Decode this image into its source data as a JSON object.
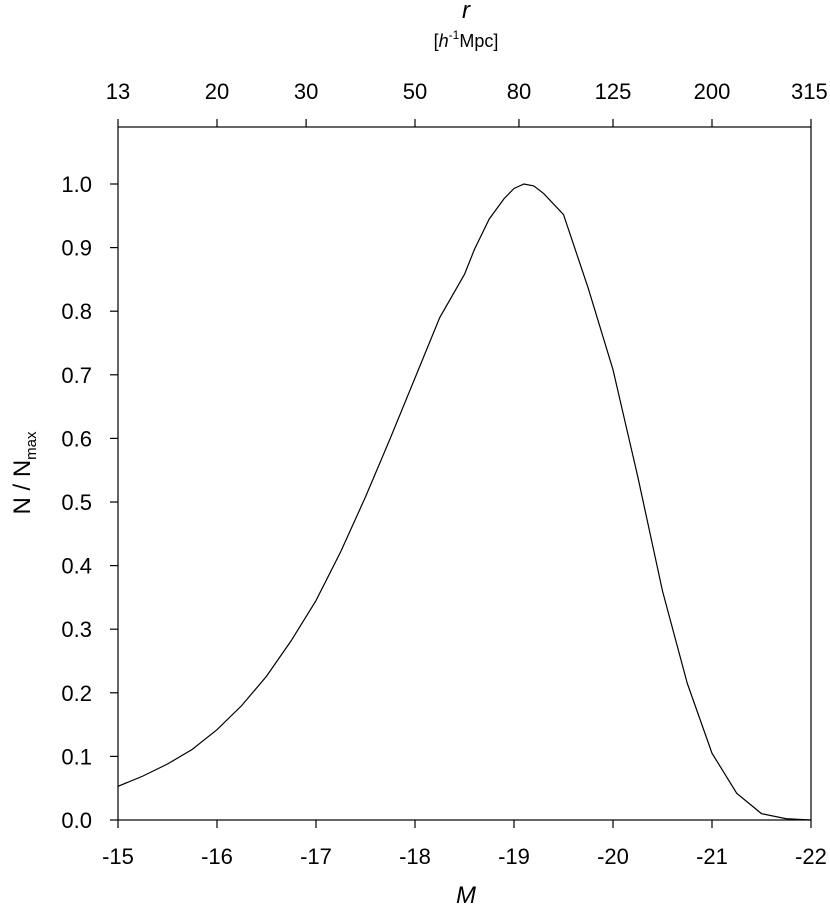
{
  "chart_data": {
    "type": "line",
    "xlabel": "M",
    "ylabel_main": "N / N",
    "ylabel_sub": "max",
    "top_axis": {
      "label": "r",
      "unit_open": "[",
      "unit_h": "h",
      "unit_sup": "-1",
      "unit_rest": "Mpc]",
      "ticks": [
        {
          "label": "13",
          "M": -15.0
        },
        {
          "label": "20",
          "M": -16.0
        },
        {
          "label": "30",
          "M": -16.9
        },
        {
          "label": "50",
          "M": -18.0
        },
        {
          "label": "80",
          "M": -19.05
        },
        {
          "label": "125",
          "M": -20.0
        },
        {
          "label": "200",
          "M": -21.0
        },
        {
          "label": "315",
          "M": -22.0
        }
      ]
    },
    "xlim": [
      -15,
      -22
    ],
    "ylim": [
      0,
      1.05
    ],
    "xticks": [
      -15,
      -16,
      -17,
      -18,
      -19,
      -20,
      -21,
      -22
    ],
    "xtick_labels": [
      "-15",
      "-16",
      "-17",
      "-18",
      "-19",
      "-20",
      "-21",
      "-22"
    ],
    "yticks": [
      0.0,
      0.1,
      0.2,
      0.3,
      0.4,
      0.5,
      0.6,
      0.7,
      0.8,
      0.9,
      1.0
    ],
    "ytick_labels": [
      "0.0",
      "0.1",
      "0.2",
      "0.3",
      "0.4",
      "0.5",
      "0.6",
      "0.7",
      "0.8",
      "0.9",
      "1.0"
    ],
    "grid": false,
    "series": [
      {
        "x": [
          -15.0,
          -15.25,
          -15.5,
          -15.75,
          -16.0,
          -16.25,
          -16.5,
          -16.75,
          -17.0,
          -17.25,
          -17.5,
          -17.75,
          -18.0,
          -18.25,
          -18.5,
          -18.6,
          -18.75,
          -18.9,
          -19.0,
          -19.1,
          -19.2,
          -19.3,
          -19.5,
          -19.75,
          -20.0,
          -20.25,
          -20.5,
          -20.75,
          -21.0,
          -21.25,
          -21.5,
          -21.75,
          -22.0
        ],
        "y": [
          0.053,
          0.069,
          0.088,
          0.111,
          0.142,
          0.18,
          0.226,
          0.282,
          0.345,
          0.422,
          0.508,
          0.6,
          0.695,
          0.79,
          0.858,
          0.897,
          0.945,
          0.977,
          0.993,
          1.0,
          0.997,
          0.985,
          0.952,
          0.836,
          0.708,
          0.54,
          0.36,
          0.215,
          0.105,
          0.042,
          0.01,
          0.002,
          0.0
        ]
      }
    ]
  }
}
